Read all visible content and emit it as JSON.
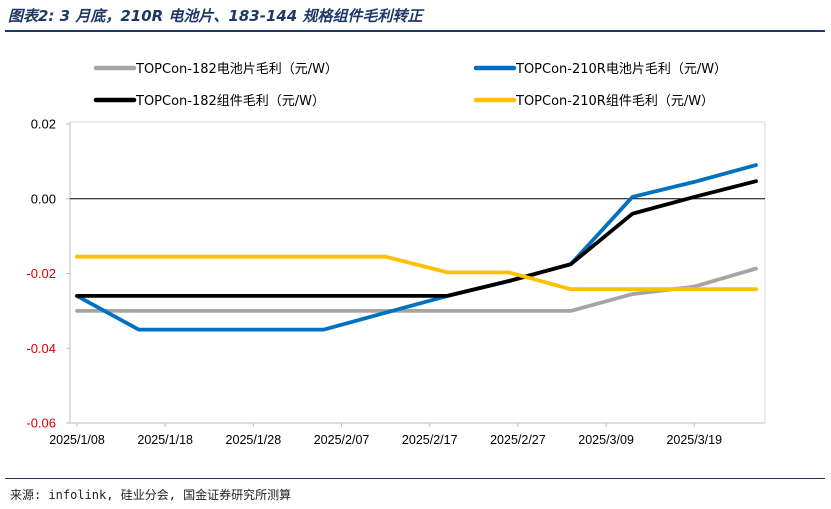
{
  "header": {
    "title": "图表2: 3 月底，210R 电池片、183-144 规格组件毛利转正"
  },
  "footer": {
    "source": "来源: infolink, 硅业分会, 国金证券研究所测算"
  },
  "chart_data": {
    "type": "line",
    "title": "图表2: 3 月底，210R 电池片、183-144 规格组件毛利转正",
    "xlabel": "",
    "ylabel": "",
    "ylim": [
      -0.06,
      0.02
    ],
    "yticks": [
      0.02,
      0.0,
      -0.02,
      -0.04,
      -0.06
    ],
    "ytick_labels": [
      "0.02",
      "0.00",
      "-0.02",
      "-0.04",
      "-0.06"
    ],
    "ytick_colors": [
      "#000000",
      "#000000",
      "#e00000",
      "#e00000",
      "#e00000"
    ],
    "x_dates": [
      "2025/1/08",
      "2025/1/15",
      "2025/2/05",
      "2025/2/12",
      "2025/2/19",
      "2025/2/26",
      "2025/3/05",
      "2025/3/12",
      "2025/3/19",
      "2025/3/26"
    ],
    "xtick_labels": [
      "2025/1/08",
      "2025/1/18",
      "2025/1/28",
      "2025/2/07",
      "2025/2/17",
      "2025/2/27",
      "2025/3/09",
      "2025/3/19"
    ],
    "grid": false,
    "legend_position": "top",
    "series": [
      {
        "name": "TOPCon-182电池片毛利（元/W）",
        "color": "#a5a5a5",
        "values": [
          -0.03,
          -0.03,
          -0.03,
          -0.03,
          -0.03,
          -0.03,
          -0.03,
          -0.0255,
          -0.0235,
          -0.0187
        ]
      },
      {
        "name": "TOPCon-210R电池片毛利（元/W）",
        "color": "#0070c0",
        "values": [
          -0.026,
          -0.035,
          -0.035,
          -0.0305,
          -0.026,
          -0.022,
          -0.0175,
          0.0005,
          0.0045,
          0.009
        ]
      },
      {
        "name": "TOPCon-182组件毛利（元/W）",
        "color": "#000000",
        "values": [
          -0.026,
          -0.026,
          -0.026,
          -0.026,
          -0.026,
          -0.022,
          -0.0175,
          -0.004,
          0.0005,
          0.0047
        ]
      },
      {
        "name": "TOPCon-210R组件毛利（元/W）",
        "color": "#ffc000",
        "values": [
          -0.0155,
          -0.0155,
          -0.0155,
          -0.0155,
          -0.0197,
          -0.0197,
          -0.0242,
          -0.0242,
          -0.0242,
          -0.0242
        ]
      }
    ]
  }
}
